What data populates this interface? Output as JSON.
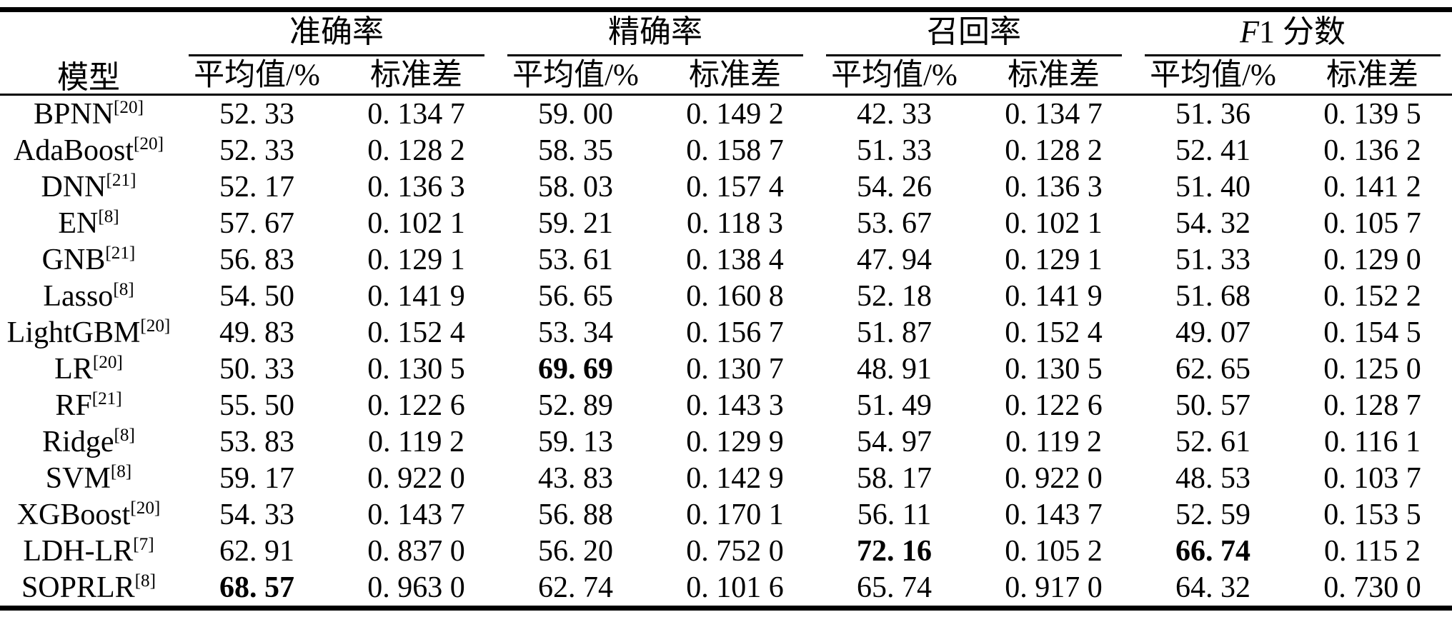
{
  "table": {
    "model_header": "模型",
    "groups": [
      {
        "pre": "",
        "label": "准确率"
      },
      {
        "pre": "",
        "label": "精确率"
      },
      {
        "pre": "",
        "label": "召回率"
      },
      {
        "pre": "F",
        "label": "1 分数"
      }
    ],
    "sub_headers": [
      "平均值/%",
      "标准差"
    ],
    "rows": [
      {
        "model": "BPNN",
        "ref": "[20]",
        "cells": [
          "52. 33",
          "0. 134 7",
          "59. 00",
          "0. 149 2",
          "42. 33",
          "0. 134 7",
          "51. 36",
          "0. 139 5"
        ],
        "bold": []
      },
      {
        "model": "AdaBoost",
        "ref": "[20]",
        "cells": [
          "52. 33",
          "0. 128 2",
          "58. 35",
          "0. 158 7",
          "51. 33",
          "0. 128 2",
          "52. 41",
          "0. 136 2"
        ],
        "bold": []
      },
      {
        "model": "DNN",
        "ref": "[21]",
        "cells": [
          "52. 17",
          "0. 136 3",
          "58. 03",
          "0. 157 4",
          "54. 26",
          "0. 136 3",
          "51. 40",
          "0. 141 2"
        ],
        "bold": []
      },
      {
        "model": "EN",
        "ref": "[8]",
        "cells": [
          "57. 67",
          "0. 102 1",
          "59. 21",
          "0. 118 3",
          "53. 67",
          "0. 102 1",
          "54. 32",
          "0. 105 7"
        ],
        "bold": []
      },
      {
        "model": "GNB",
        "ref": "[21]",
        "cells": [
          "56. 83",
          "0. 129 1",
          "53. 61",
          "0. 138 4",
          "47. 94",
          "0. 129 1",
          "51. 33",
          "0. 129 0"
        ],
        "bold": []
      },
      {
        "model": "Lasso",
        "ref": "[8]",
        "cells": [
          "54. 50",
          "0. 141 9",
          "56. 65",
          "0. 160 8",
          "52. 18",
          "0. 141 9",
          "51. 68",
          "0. 152 2"
        ],
        "bold": []
      },
      {
        "model": "LightGBM",
        "ref": "[20]",
        "cells": [
          "49. 83",
          "0. 152 4",
          "53. 34",
          "0. 156 7",
          "51. 87",
          "0. 152 4",
          "49. 07",
          "0. 154 5"
        ],
        "bold": []
      },
      {
        "model": "LR",
        "ref": "[20]",
        "cells": [
          "50. 33",
          "0. 130 5",
          "69. 69",
          "0. 130 7",
          "48. 91",
          "0. 130 5",
          "62. 65",
          "0. 125 0"
        ],
        "bold": [
          2
        ]
      },
      {
        "model": "RF",
        "ref": "[21]",
        "cells": [
          "55. 50",
          "0. 122 6",
          "52. 89",
          "0. 143 3",
          "51. 49",
          "0. 122 6",
          "50. 57",
          "0. 128 7"
        ],
        "bold": []
      },
      {
        "model": "Ridge",
        "ref": "[8]",
        "cells": [
          "53. 83",
          "0. 119 2",
          "59. 13",
          "0. 129 9",
          "54. 97",
          "0. 119 2",
          "52. 61",
          "0. 116 1"
        ],
        "bold": []
      },
      {
        "model": "SVM",
        "ref": "[8]",
        "cells": [
          "59. 17",
          "0. 922 0",
          "43. 83",
          "0. 142 9",
          "58. 17",
          "0. 922 0",
          "48. 53",
          "0. 103 7"
        ],
        "bold": []
      },
      {
        "model": "XGBoost",
        "ref": "[20]",
        "cells": [
          "54. 33",
          "0. 143 7",
          "56. 88",
          "0. 170 1",
          "56. 11",
          "0. 143 7",
          "52. 59",
          "0. 153 5"
        ],
        "bold": []
      },
      {
        "model": "LDH-LR",
        "ref": "[7]",
        "cells": [
          "62. 91",
          "0. 837 0",
          "56. 20",
          "0. 752 0",
          "72. 16",
          "0. 105 2",
          "66. 74",
          "0. 115 2"
        ],
        "bold": [
          4,
          6
        ]
      },
      {
        "model": "SOPRLR",
        "ref": "[8]",
        "cells": [
          "68. 57",
          "0. 963 0",
          "62. 74",
          "0. 101 6",
          "65. 74",
          "0. 917 0",
          "64. 32",
          "0. 730 0"
        ],
        "bold": [
          0
        ]
      }
    ]
  },
  "colors": {
    "text": "#000000",
    "background": "#ffffff",
    "rule": "#000000"
  }
}
